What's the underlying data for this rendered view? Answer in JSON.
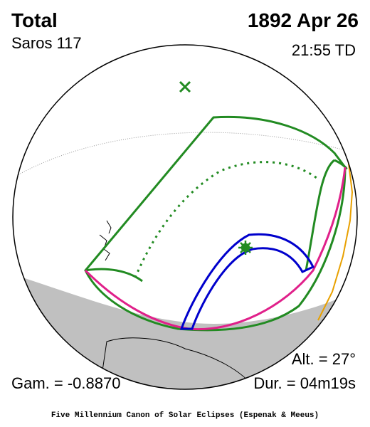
{
  "header": {
    "eclipse_type": "Total",
    "saros": "Saros 117",
    "date": "1892 Apr 26",
    "time": "21:55 TD"
  },
  "stats": {
    "altitude": "Alt. = 27°",
    "gamma": "Gam. = -0.8870",
    "duration": "Dur. = 04m19s"
  },
  "caption": "Five Millennium Canon of Solar Eclipses (Espenak & Meeus)"
}
